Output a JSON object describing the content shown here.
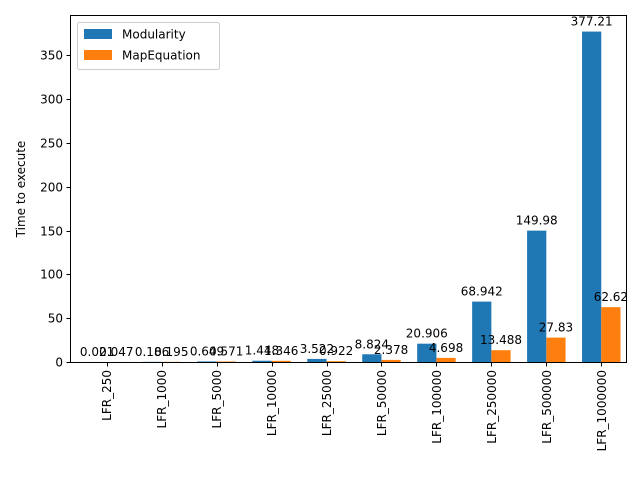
{
  "chart_data": {
    "type": "bar",
    "categories": [
      "LFR_250",
      "LFR_1000",
      "LFR_5000",
      "LFR_10000",
      "LFR_25000",
      "LFR_50000",
      "LFR_100000",
      "LFR_250000",
      "LFR_500000",
      "LFR_1000000"
    ],
    "series": [
      {
        "name": "Modularity",
        "color": "#1f77b4",
        "values": [
          0.021,
          0.186,
          0.649,
          1.448,
          3.522,
          8.824,
          20.906,
          68.942,
          149.98,
          377.21
        ],
        "labels": [
          "0.021",
          "0.186",
          "0.649",
          "1.448",
          "3.522",
          "8.824",
          "20.906",
          "68.942",
          "149.98",
          "377.21"
        ]
      },
      {
        "name": "MapEquation",
        "color": "#ff7f0e",
        "values": [
          0.047,
          0.195,
          0.571,
          1.346,
          0.922,
          2.378,
          4.698,
          13.488,
          27.83,
          62.62
        ],
        "labels": [
          "0.047",
          "0.195",
          "0.571",
          "1.346",
          "0.922",
          "2.378",
          "4.698",
          "13.488",
          "27.83",
          "62.62"
        ]
      }
    ],
    "xlabel": "",
    "ylabel": "Time to execute",
    "ylim": [
      0,
      395
    ],
    "yticks": [
      0,
      50,
      100,
      150,
      200,
      250,
      300,
      350
    ],
    "legend": "top-left",
    "grid": false
  }
}
